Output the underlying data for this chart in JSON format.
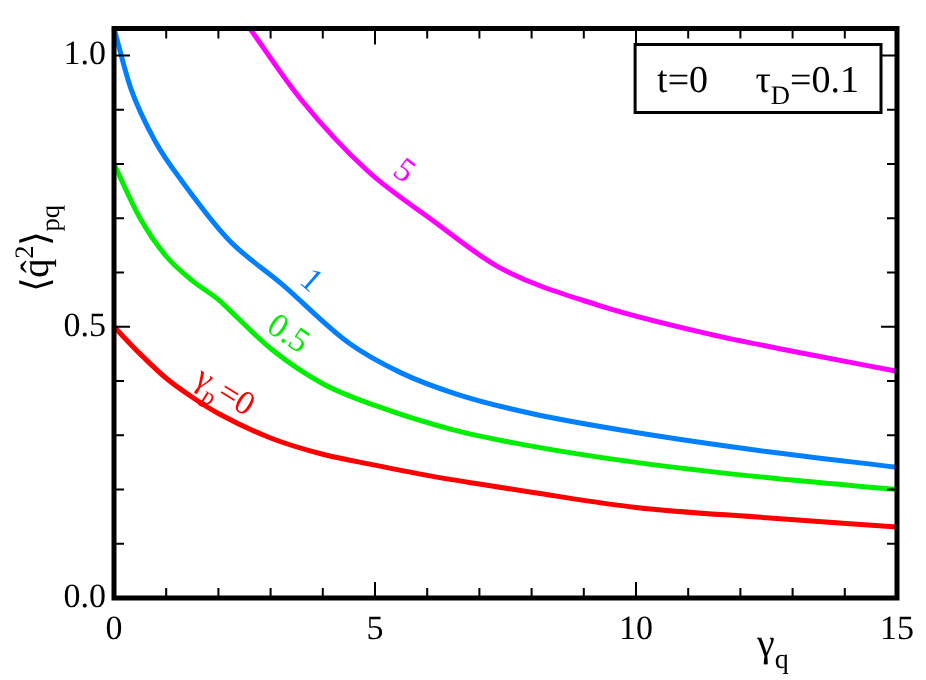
{
  "chart_data": {
    "type": "line",
    "xlabel": "γ$_{q}$",
    "ylabel": "⟨q̂$^{2}$⟩$_{pq}$",
    "annotations": [
      "t=0     τ$_{D}$=0.1"
    ],
    "xlim": [
      0,
      15
    ],
    "xticks": [
      0,
      {
        "value": 1,
        "label": null
      },
      {
        "value": 2,
        "label": null
      },
      {
        "value": 3,
        "label": null
      },
      {
        "value": 4,
        "label": null
      },
      5,
      {
        "value": 6,
        "label": null
      },
      {
        "value": 7,
        "label": null
      },
      {
        "value": 8,
        "label": null
      },
      {
        "value": 9,
        "label": null
      },
      10,
      {
        "value": 11,
        "label": null
      },
      {
        "value": 12,
        "label": null
      },
      {
        "value": 13,
        "label": null
      },
      {
        "value": 14,
        "label": null
      },
      15
    ],
    "ylim": [
      0,
      1.05
    ],
    "yticks": [
      {
        "value": 0,
        "label": "0.0"
      },
      {
        "value": 0.1,
        "label": null
      },
      {
        "value": 0.2,
        "label": null
      },
      {
        "value": 0.3,
        "label": null
      },
      {
        "value": 0.4,
        "label": null
      },
      {
        "value": 0.5,
        "label": "0.5"
      },
      {
        "value": 0.6,
        "label": null
      },
      {
        "value": 0.7,
        "label": null
      },
      {
        "value": 0.8,
        "label": null
      },
      {
        "value": 0.9,
        "label": null
      },
      {
        "value": 1,
        "label": "1.0"
      }
    ],
    "grid": false,
    "legend": false,
    "marker": "none",
    "line_style": "solid",
    "series": [
      {
        "name": "γ$_{p}$=0",
        "color": "#ff0000",
        "x": [
          0,
          0.5,
          1,
          1.5,
          2,
          3,
          4,
          5,
          6,
          7,
          8,
          10,
          12.5,
          15
        ],
        "values": [
          0.5,
          0.45,
          0.405,
          0.37,
          0.34,
          0.295,
          0.265,
          0.245,
          0.226,
          0.21,
          0.195,
          0.167,
          0.148,
          0.131
        ]
      },
      {
        "name": "0.5",
        "color": "#00ee00",
        "x": [
          0,
          0.5,
          1,
          1.5,
          2,
          2.35,
          3,
          4,
          5,
          6.5,
          8,
          10,
          12.5,
          15
        ],
        "values": [
          0.8,
          0.7,
          0.63,
          0.585,
          0.55,
          0.518,
          0.46,
          0.395,
          0.355,
          0.31,
          0.28,
          0.25,
          0.222,
          0.2
        ]
      },
      {
        "name": "1",
        "color": "#0080ff",
        "x": [
          0,
          0.32,
          0.8,
          1.32,
          2.2,
          3.2,
          4.5,
          5.5,
          6.56,
          8,
          10,
          12.5,
          15
        ],
        "values": [
          1.05,
          0.94,
          0.84,
          0.766,
          0.66,
          0.58,
          0.47,
          0.415,
          0.376,
          0.34,
          0.305,
          0.27,
          0.241
        ]
      },
      {
        "name": "5",
        "color": "#ff00ff",
        "x": [
          2.6,
          3.59,
          4.85,
          6.12,
          7.37,
          9.27,
          11.43,
          13,
          15
        ],
        "values": [
          1.05,
          0.918,
          0.788,
          0.695,
          0.61,
          0.54,
          0.486,
          0.455,
          0.418
        ]
      }
    ]
  }
}
